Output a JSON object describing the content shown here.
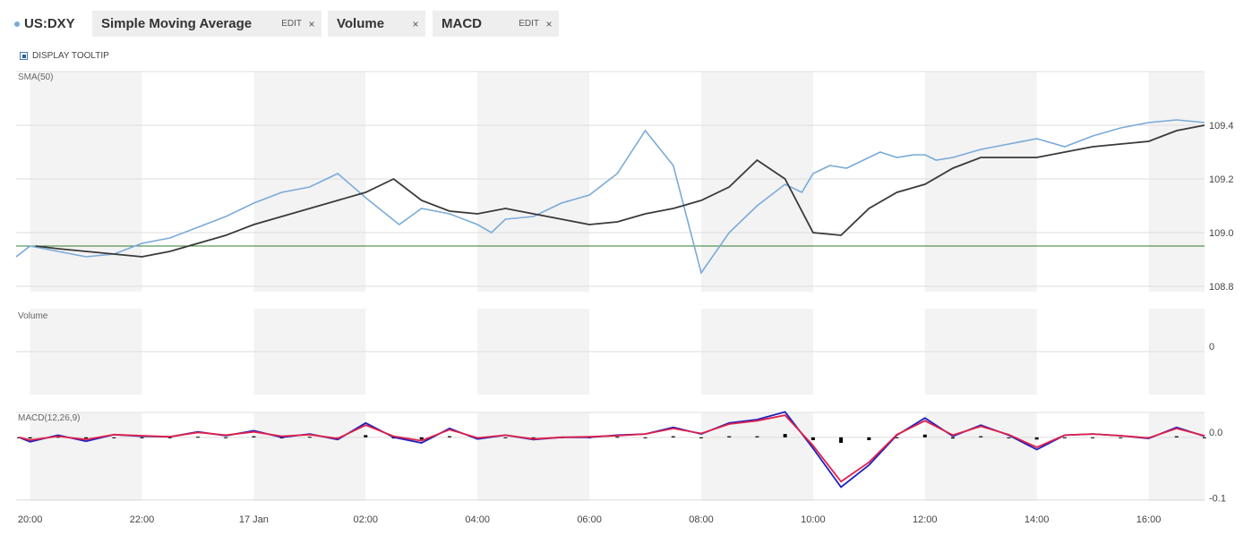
{
  "header": {
    "symbol": "US:DXY",
    "indicators": [
      {
        "name": "Simple Moving Average",
        "edit_label": "EDIT",
        "close_label": "×"
      },
      {
        "name": "Volume",
        "close_label": "×"
      },
      {
        "name": "MACD",
        "edit_label": "EDIT",
        "close_label": "×"
      }
    ],
    "tooltip_label": "DISPLAY TOOLTIP"
  },
  "panels": {
    "price_label": "SMA(50)",
    "volume_label": "Volume",
    "macd_label": "MACD(12,26,9)"
  },
  "colors": {
    "price": "#7aaad8",
    "sma": "#3a3a3a",
    "reference_line": "#2e7d32",
    "macd": "#1f1fbf",
    "signal": "#e0204a",
    "histogram": "#000000",
    "shade": "#f3f3f3"
  },
  "chart_data": [
    {
      "type": "line",
      "title": "US:DXY",
      "x_ticks": [
        "20:00",
        "22:00",
        "17 Jan",
        "02:00",
        "04:00",
        "06:00",
        "08:00",
        "10:00",
        "12:00",
        "14:00",
        "16:00"
      ],
      "x_tick_hours": [
        0,
        2,
        4,
        6,
        8,
        10,
        12,
        14,
        16,
        18,
        20
      ],
      "xlim_hours": [
        -0.25,
        21.0
      ],
      "ylim": [
        108.78,
        109.6
      ],
      "y_ticks": [
        "108.8",
        "109.0",
        "109.2",
        "109.4"
      ],
      "y_tick_values": [
        108.8,
        109.0,
        109.2,
        109.4
      ],
      "reference_line": 108.95,
      "series": [
        {
          "name": "US:DXY",
          "x_hours": [
            -0.25,
            0,
            0.5,
            1,
            1.5,
            2,
            2.5,
            3,
            3.5,
            4,
            4.5,
            5,
            5.5,
            6,
            6.3,
            6.6,
            7,
            7.5,
            8,
            8.25,
            8.5,
            9,
            9.5,
            10,
            10.5,
            11,
            11.5,
            12,
            12.5,
            13,
            13.5,
            13.8,
            14,
            14.3,
            14.6,
            14.9,
            15.2,
            15.5,
            15.8,
            16,
            16.2,
            16.5,
            17,
            17.5,
            18,
            18.5,
            19,
            19.5,
            20,
            20.5,
            21
          ],
          "values": [
            108.91,
            108.95,
            108.93,
            108.91,
            108.92,
            108.96,
            108.98,
            109.02,
            109.06,
            109.11,
            109.15,
            109.17,
            109.22,
            109.13,
            109.08,
            109.03,
            109.09,
            109.07,
            109.03,
            109.0,
            109.05,
            109.06,
            109.11,
            109.14,
            109.22,
            109.38,
            109.25,
            108.85,
            109.0,
            109.1,
            109.18,
            109.15,
            109.22,
            109.25,
            109.24,
            109.27,
            109.3,
            109.28,
            109.29,
            109.29,
            109.27,
            109.28,
            109.31,
            109.33,
            109.35,
            109.32,
            109.36,
            109.39,
            109.41,
            109.42,
            109.41
          ]
        },
        {
          "name": "SMA(50)",
          "x_hours": [
            0.1,
            0.5,
            1,
            1.5,
            2,
            2.5,
            3,
            3.5,
            4,
            4.5,
            5,
            5.5,
            6,
            6.5,
            7,
            7.5,
            8,
            8.5,
            9,
            9.5,
            10,
            10.5,
            11,
            11.5,
            12,
            12.5,
            13,
            13.5,
            14,
            14.5,
            15,
            15.5,
            16,
            16.5,
            17,
            17.5,
            18,
            18.5,
            19,
            19.5,
            20,
            20.5,
            21
          ],
          "values": [
            108.95,
            108.94,
            108.93,
            108.92,
            108.91,
            108.93,
            108.96,
            108.99,
            109.03,
            109.06,
            109.09,
            109.12,
            109.15,
            109.2,
            109.12,
            109.08,
            109.07,
            109.09,
            109.07,
            109.05,
            109.03,
            109.04,
            109.07,
            109.09,
            109.12,
            109.17,
            109.27,
            109.2,
            109.0,
            108.99,
            109.09,
            109.15,
            109.18,
            109.24,
            109.28,
            109.28,
            109.28,
            109.3,
            109.32,
            109.33,
            109.34,
            109.38,
            109.4
          ]
        }
      ]
    },
    {
      "type": "area",
      "title": "Volume",
      "x_ticks": [
        "20:00",
        "22:00",
        "17 Jan",
        "02:00",
        "04:00",
        "06:00",
        "08:00",
        "10:00",
        "12:00",
        "14:00",
        "16:00"
      ],
      "y_ticks": [
        "0"
      ],
      "y_tick_values": [
        0
      ],
      "values": []
    },
    {
      "type": "line",
      "title": "MACD(12,26,9)",
      "x_ticks": [
        "20:00",
        "22:00",
        "17 Jan",
        "02:00",
        "04:00",
        "06:00",
        "08:00",
        "10:00",
        "12:00",
        "14:00",
        "16:00"
      ],
      "ylim": [
        -0.115,
        0.045
      ],
      "y_ticks": [
        "0.0",
        "-0.1"
      ],
      "y_tick_values": [
        0.0,
        -0.1
      ],
      "series": [
        {
          "name": "MACD",
          "x_hours": [
            -0.2,
            0,
            0.5,
            1,
            1.5,
            2,
            2.5,
            3,
            3.5,
            4,
            4.5,
            5,
            5.5,
            6,
            6.5,
            7,
            7.5,
            8,
            8.5,
            9,
            9.5,
            10,
            10.5,
            11,
            11.5,
            12,
            12.5,
            13,
            13.5,
            14,
            14.5,
            15,
            15.5,
            16,
            16.5,
            17,
            17.5,
            18,
            18.5,
            19,
            19.5,
            20,
            20.5,
            21
          ],
          "values": [
            0.0,
            -0.008,
            0.004,
            -0.007,
            0.005,
            0.002,
            0.001,
            0.01,
            0.003,
            0.012,
            0.0,
            0.006,
            -0.004,
            0.026,
            0.0,
            -0.01,
            0.016,
            -0.003,
            0.004,
            -0.004,
            0.0,
            0.0,
            0.004,
            0.006,
            0.018,
            0.006,
            0.026,
            0.032,
            0.046,
            -0.02,
            -0.09,
            -0.05,
            0.004,
            0.035,
            0.002,
            0.022,
            0.004,
            -0.022,
            0.004,
            0.006,
            0.003,
            -0.002,
            0.018,
            0.002
          ]
        },
        {
          "name": "Signal",
          "x_hours": [
            -0.2,
            0,
            0.5,
            1,
            1.5,
            2,
            2.5,
            3,
            3.5,
            4,
            4.5,
            5,
            5.5,
            6,
            6.5,
            7,
            7.5,
            8,
            8.5,
            9,
            9.5,
            10,
            10.5,
            11,
            11.5,
            12,
            12.5,
            13,
            13.5,
            14,
            14.5,
            15,
            15.5,
            16,
            16.5,
            17,
            17.5,
            18,
            18.5,
            19,
            19.5,
            20,
            20.5,
            21
          ],
          "values": [
            0.0,
            -0.005,
            0.002,
            -0.004,
            0.005,
            0.003,
            0.001,
            0.009,
            0.004,
            0.01,
            0.002,
            0.005,
            -0.002,
            0.022,
            0.002,
            -0.006,
            0.014,
            -0.001,
            0.004,
            -0.003,
            0.0,
            0.001,
            0.003,
            0.006,
            0.016,
            0.007,
            0.024,
            0.03,
            0.04,
            -0.015,
            -0.08,
            -0.045,
            0.005,
            0.03,
            0.004,
            0.02,
            0.005,
            -0.018,
            0.004,
            0.006,
            0.003,
            -0.001,
            0.016,
            0.003
          ]
        },
        {
          "name": "Histogram",
          "x_hours": [
            -0.2,
            0,
            0.5,
            1,
            1.5,
            2,
            2.5,
            3,
            3.5,
            4,
            4.5,
            5,
            5.5,
            6,
            6.5,
            7,
            7.5,
            8,
            8.5,
            9,
            9.5,
            10,
            10.5,
            11,
            11.5,
            12,
            12.5,
            13,
            13.5,
            14,
            14.5,
            15,
            15.5,
            16,
            16.5,
            17,
            17.5,
            18,
            18.5,
            19,
            19.5,
            20,
            20.5,
            21
          ],
          "values": [
            0.0,
            -0.002,
            0.001,
            -0.002,
            0.0,
            -0.001,
            0.0,
            0.001,
            -0.001,
            0.002,
            -0.002,
            0.001,
            -0.002,
            0.004,
            -0.002,
            -0.004,
            0.002,
            -0.002,
            0.0,
            -0.001,
            0.0,
            -0.001,
            0.001,
            0.0,
            0.002,
            -0.001,
            0.002,
            0.002,
            0.006,
            -0.005,
            -0.01,
            -0.005,
            0.0,
            0.005,
            -0.002,
            0.002,
            -0.001,
            -0.004,
            0.0,
            0.0,
            0.0,
            -0.001,
            0.002,
            -0.001
          ]
        }
      ]
    }
  ]
}
